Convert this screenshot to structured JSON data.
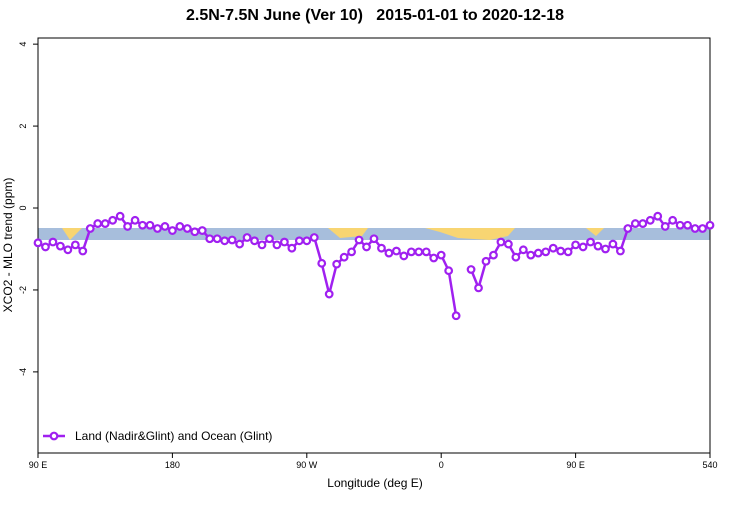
{
  "chart_data": {
    "type": "line",
    "title": "2.5N-7.5N June (Ver 10)   2015-01-01 to 2020-12-18",
    "x_label": "Longitude (deg E)",
    "y_label": "XCO2 - MLO trend (ppm)",
    "x": [
      90,
      95,
      100,
      105,
      110,
      115,
      120,
      125,
      130,
      135,
      140,
      145,
      150,
      155,
      160,
      165,
      170,
      175,
      180,
      185,
      190,
      195,
      200,
      205,
      210,
      215,
      220,
      225,
      230,
      235,
      240,
      245,
      250,
      255,
      260,
      265,
      270,
      275,
      280,
      285,
      290,
      295,
      300,
      305,
      310,
      315,
      320,
      325,
      330,
      335,
      340,
      345,
      350,
      355,
      360,
      365,
      370,
      375,
      380,
      385,
      390,
      395,
      400,
      405,
      410,
      415,
      420,
      425,
      430,
      435,
      440,
      445,
      450,
      455,
      460,
      465,
      470,
      475,
      480,
      485,
      490,
      495,
      500,
      505,
      510,
      515,
      520,
      525,
      530,
      535,
      540
    ],
    "series": [
      {
        "name": "Land (Nadir&Glint) and Ocean (Glint)",
        "color": "#a020f0",
        "values": [
          -0.85,
          -0.95,
          -0.83,
          -0.93,
          -1.02,
          -0.9,
          -1.05,
          -0.5,
          -0.38,
          -0.38,
          -0.3,
          -0.2,
          -0.45,
          -0.3,
          -0.42,
          -0.42,
          -0.5,
          -0.45,
          -0.55,
          -0.45,
          -0.5,
          -0.58,
          -0.55,
          -0.75,
          -0.75,
          -0.8,
          -0.78,
          -0.88,
          -0.72,
          -0.8,
          -0.9,
          -0.75,
          -0.9,
          -0.83,
          -0.98,
          -0.8,
          -0.8,
          -0.72,
          -1.35,
          -2.1,
          -1.37,
          -1.2,
          -1.07,
          -0.78,
          -0.95,
          -0.75,
          -0.98,
          -1.1,
          -1.05,
          -1.17,
          -1.07,
          -1.07,
          -1.07,
          -1.22,
          -1.15,
          -1.53,
          -2.63,
          null,
          -1.5,
          -1.95,
          -1.3,
          -1.15,
          -0.83,
          -0.88,
          -1.2,
          -1.02,
          -1.15,
          -1.1,
          -1.07,
          -0.98,
          -1.05,
          -1.07,
          -0.9,
          -0.95,
          -0.83,
          -0.93,
          -1.0,
          -0.88,
          -1.05,
          -0.5,
          -0.38,
          -0.38,
          -0.3,
          -0.2,
          -0.45,
          -0.3,
          -0.42,
          -0.42,
          -0.5,
          -0.5,
          -0.42
        ]
      }
    ],
    "xlim": [
      90,
      540
    ],
    "ylim": [
      -5.98,
      4.15
    ],
    "xticks": [
      {
        "value": 90,
        "label": "90 E"
      },
      180,
      {
        "value": 270,
        "label": "90 W"
      },
      {
        "value": 360,
        "label": "0"
      },
      {
        "value": 450,
        "label": "90 E"
      },
      540
    ],
    "yticks": [
      -4,
      -2,
      0,
      2,
      4
    ],
    "legend": "bottom-left"
  }
}
